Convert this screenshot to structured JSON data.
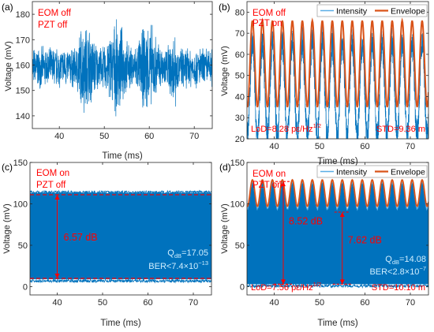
{
  "colors": {
    "intensity": "#0072BD",
    "intensity_light": "#5aaee6",
    "envelope": "#D95319",
    "annotation": "#ff0000",
    "axis": "#262626"
  },
  "chart_data": [
    {
      "id": "a",
      "type": "line",
      "panel_label": "(a)",
      "annotations": [
        "EOM off",
        "PZT off"
      ],
      "xlabel": "Time (ms)",
      "ylabel": "Voltage (mV)",
      "xlim": [
        34,
        74
      ],
      "ylim": [
        135,
        185
      ],
      "xticks": [
        40,
        50,
        60,
        70
      ],
      "yticks": [
        140,
        150,
        160,
        170,
        180
      ],
      "series": [
        {
          "values_kind": "noise",
          "baseline": 159,
          "spread": 8,
          "burst": {
            "x": [
              44,
              66
            ],
            "extra_spread": 10,
            "max": 178,
            "min": 139
          }
        }
      ]
    },
    {
      "id": "b",
      "type": "line",
      "panel_label": "(b)",
      "annotations": [
        "EOM off",
        "PZT on"
      ],
      "legend": [
        "Intensity",
        "Envelope"
      ],
      "legend_position": "top-right",
      "xlabel": "Time (ms)",
      "ylabel": "Voltage (mV)",
      "xlim": [
        34,
        74
      ],
      "ylim": [
        20,
        85
      ],
      "xticks": [
        40,
        50,
        60,
        70
      ],
      "yticks": [
        20,
        30,
        40,
        50,
        60,
        70,
        80
      ],
      "series": [
        {
          "values_kind": "oscillation",
          "period_ms": 2.2,
          "intensity_top": 72,
          "intensity_bottom": 28,
          "envelope_top": 76,
          "envelope_bottom": 35
        }
      ],
      "text": {
        "lod_main": "LoD=8.28 pε/Hz",
        "lod_sup": "1/2",
        "std": "STD=9.36 m"
      }
    },
    {
      "id": "c",
      "type": "line",
      "panel_label": "(c)",
      "annotations": [
        "EOM on",
        "PZT off"
      ],
      "xlabel": "Time (ms)",
      "ylabel": "Voltage (mV)",
      "xlim": [
        34,
        74
      ],
      "ylim": [
        -10,
        150
      ],
      "xticks": [
        40,
        50,
        60,
        70
      ],
      "yticks": [
        0,
        50,
        100,
        150
      ],
      "series": [
        {
          "values_kind": "band",
          "top": 113,
          "bottom": 9
        }
      ],
      "dashed_levels": [
        111,
        10
      ],
      "arrow": {
        "x": 40,
        "y_top": 111,
        "y_bottom": 10,
        "label": "6.57 dB"
      },
      "text": {
        "q_main": "Q",
        "q_sub": "dB",
        "q_val": "=17.05",
        "ber_main": "BER<7.4×10",
        "ber_sup": "−13"
      }
    },
    {
      "id": "d",
      "type": "line",
      "panel_label": "(d)",
      "annotations": [
        "EOM on",
        "PZT on"
      ],
      "legend": [
        "Intensity",
        "Envelope"
      ],
      "legend_position": "top-right",
      "xlabel": "Time (ms)",
      "ylabel": "Voltage (mV)",
      "xlim": [
        34,
        74
      ],
      "ylim": [
        -10,
        150
      ],
      "xticks": [
        40,
        50,
        60,
        70
      ],
      "yticks": [
        0,
        50,
        100,
        150
      ],
      "series": [
        {
          "values_kind": "oscillating_band",
          "period_ms": 2.2,
          "top_high": 128,
          "top_low": 96,
          "bottom": 3
        }
      ],
      "arrows": [
        {
          "x": 42,
          "y_top": 127,
          "y_bottom": 3,
          "label": "8.52 dB"
        },
        {
          "x": 55,
          "y_top": 90,
          "y_bottom": 3,
          "label": "7.62 dB"
        }
      ],
      "text": {
        "q_main": "Q",
        "q_sub": "dB",
        "q_val": "=14.08",
        "ber_main": "BER<2.8×10",
        "ber_sup": "−7",
        "lod_main": "LoD=7.56 pε/Hz",
        "lod_sup": "1/2",
        "std": "STD=10.10 m"
      }
    }
  ]
}
